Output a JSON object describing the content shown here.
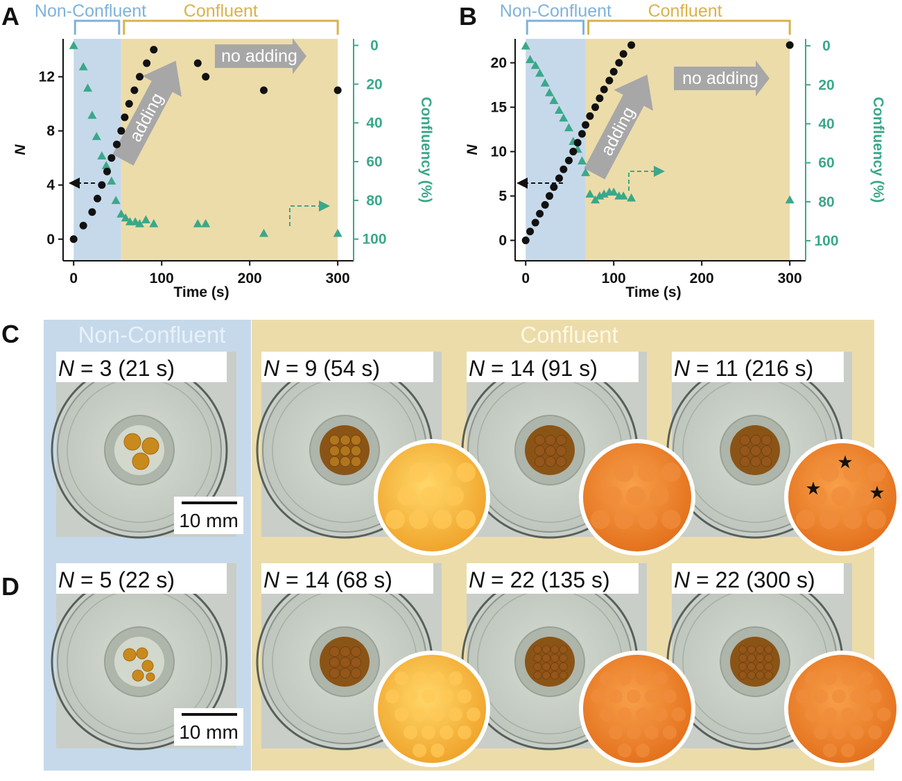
{
  "colors": {
    "nonconfluent_bg": "#c6d9ea",
    "confluent_bg": "#ecdcaa",
    "nonconfluent_text": "#7fb2dc",
    "confluent_text": "#d9b24a",
    "confluency_green": "#3aa88a",
    "count_black": "#111111",
    "arrow_gray": "#a7a7a7"
  },
  "panels": {
    "A": "A",
    "B": "B",
    "C": "C",
    "D": "D"
  },
  "chart_data": [
    {
      "id": "A",
      "type": "scatter",
      "title": "",
      "xlabel": "Time (s)",
      "ylabel": "N",
      "y2label": "Confluency (%)",
      "xlim": [
        -12,
        318
      ],
      "ylim": [
        -1.6,
        14.8
      ],
      "y2lim": [
        -3.4,
        111.2
      ],
      "xticks": [
        0,
        100,
        200,
        300
      ],
      "yticks": [
        0,
        4,
        8,
        12
      ],
      "y2ticks": [
        0,
        20,
        40,
        60,
        80,
        100
      ],
      "y2_inverted": true,
      "regions": [
        {
          "label": "Non-Confluent",
          "x0": 0,
          "x1": 54
        },
        {
          "label": "Confluent",
          "x0": 54,
          "x1": 300
        }
      ],
      "annotations": [
        "adding",
        "no adding"
      ],
      "series": [
        {
          "name": "N",
          "axis": "left",
          "marker": "circle",
          "x": [
            0,
            11,
            21,
            27,
            32,
            38,
            43,
            49,
            54,
            58,
            63,
            69,
            75,
            83,
            91,
            141,
            150,
            216,
            300
          ],
          "y": [
            0,
            1,
            2,
            3,
            4,
            5,
            6,
            7,
            8,
            9,
            10,
            11,
            12,
            13,
            14,
            13,
            12,
            11,
            11
          ]
        },
        {
          "name": "Confluency",
          "axis": "right",
          "marker": "triangle",
          "x": [
            0,
            11,
            16,
            21,
            26,
            32,
            37,
            43,
            48,
            54,
            59,
            64,
            70,
            75,
            82,
            91,
            141,
            150,
            216,
            300
          ],
          "y": [
            0,
            11,
            22,
            36,
            47,
            57,
            62,
            70,
            80,
            87,
            89,
            91,
            91,
            92,
            90,
            92,
            92,
            92,
            97,
            97
          ]
        }
      ]
    },
    {
      "id": "B",
      "type": "scatter",
      "title": "",
      "xlabel": "Time (s)",
      "ylabel": "N",
      "y2label": "Confluency (%)",
      "xlim": [
        -12,
        318
      ],
      "ylim": [
        -2.3,
        22.7
      ],
      "y2lim": [
        -3.6,
        110.3
      ],
      "xticks": [
        0,
        100,
        200,
        300
      ],
      "yticks": [
        0,
        5,
        10,
        15,
        20
      ],
      "y2ticks": [
        0,
        20,
        40,
        60,
        80,
        100
      ],
      "y2_inverted": true,
      "regions": [
        {
          "label": "Non-Confluent",
          "x0": 0,
          "x1": 68
        },
        {
          "label": "Confluent",
          "x0": 68,
          "x1": 300
        }
      ],
      "annotations": [
        "adding",
        "no adding"
      ],
      "series": [
        {
          "name": "N",
          "axis": "left",
          "marker": "circle",
          "x": [
            0,
            5,
            11,
            16,
            22,
            27,
            32,
            38,
            43,
            49,
            54,
            59,
            64,
            68,
            73,
            79,
            84,
            89,
            95,
            100,
            106,
            111,
            120,
            300
          ],
          "y": [
            0,
            1,
            2,
            3,
            4,
            5,
            6,
            7,
            8,
            9,
            10,
            11,
            12,
            13,
            14,
            15,
            16,
            17,
            18,
            19,
            20,
            21,
            22,
            22
          ]
        },
        {
          "name": "Confluency",
          "axis": "right",
          "marker": "triangle",
          "x": [
            0,
            5,
            11,
            16,
            22,
            27,
            32,
            38,
            43,
            49,
            54,
            59,
            64,
            68,
            73,
            79,
            84,
            89,
            95,
            100,
            106,
            111,
            120,
            300
          ],
          "y": [
            0,
            7,
            10,
            14,
            19,
            24,
            28,
            33,
            37,
            42,
            49,
            53,
            59,
            65,
            76,
            79,
            77,
            76,
            75,
            75,
            77,
            77,
            78,
            79
          ]
        }
      ]
    }
  ],
  "panel_c": {
    "header_nonconfluent": "Non-Confluent",
    "header_confluent": "Confluent",
    "captions": [
      {
        "n": "N",
        "rest": " = 3 (21 s)"
      },
      {
        "n": "N",
        "rest": " = 9 (54 s)"
      },
      {
        "n": "N",
        "rest": " = 14 (91 s)"
      },
      {
        "n": "N",
        "rest": " = 11 (216 s)"
      }
    ],
    "scale_bar": "10 mm"
  },
  "panel_d": {
    "captions": [
      {
        "n": "N",
        "rest": " = 5 (22 s)"
      },
      {
        "n": "N",
        "rest": " = 14 (68 s)"
      },
      {
        "n": "N",
        "rest": " = 22 (135 s)"
      },
      {
        "n": "N",
        "rest": " = 22 (300 s)"
      }
    ],
    "scale_bar": "10 mm"
  },
  "star_symbol": "★"
}
